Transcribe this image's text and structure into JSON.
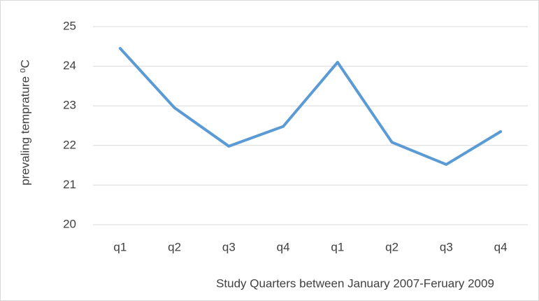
{
  "chart_data": {
    "type": "line",
    "categories": [
      "q1",
      "q2",
      "q3",
      "q4",
      "q1",
      "q2",
      "q3",
      "q4"
    ],
    "series": [
      {
        "color": "#5b9bd5",
        "values": [
          24.45,
          22.95,
          21.98,
          22.48,
          24.1,
          22.08,
          21.52,
          22.35
        ]
      }
    ],
    "ylim": [
      20,
      25
    ],
    "yticks": [
      20,
      21,
      22,
      23,
      24,
      25
    ],
    "grid": true,
    "y_label": "prevaling temprature ⁰C",
    "x_label": "Study Quarters between January 2007-Feruary 2009"
  }
}
